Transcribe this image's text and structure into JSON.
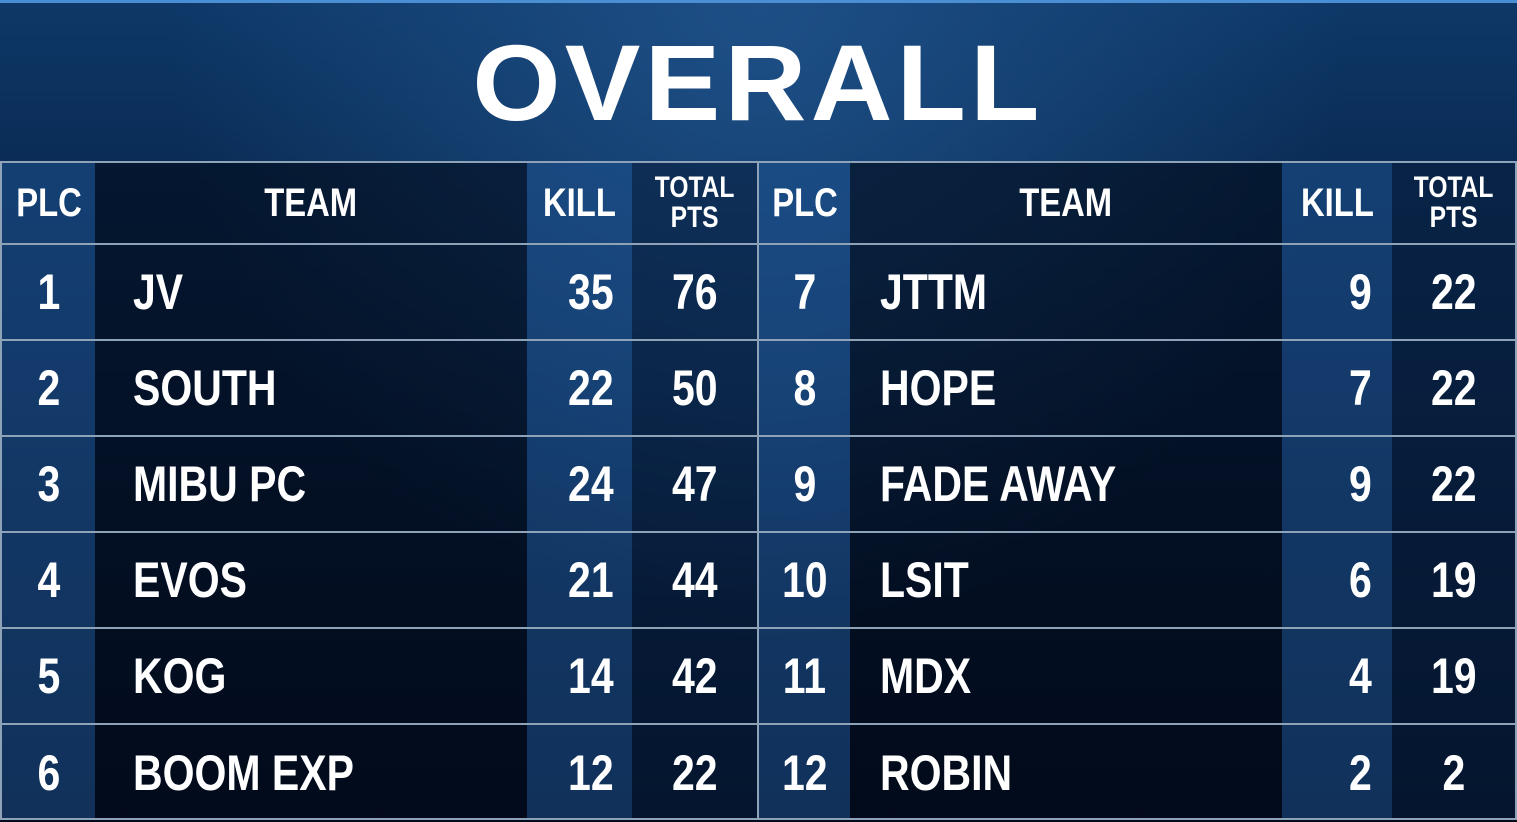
{
  "title": "OVERALL",
  "headers": {
    "plc": "PLC",
    "team": "TEAM",
    "kill": "KILL",
    "total_line1": "TOTAL",
    "total_line2": "PTS"
  },
  "left": [
    {
      "plc": "1",
      "team": "JV",
      "kill": "35",
      "total": "76"
    },
    {
      "plc": "2",
      "team": "SOUTH",
      "kill": "22",
      "total": "50"
    },
    {
      "plc": "3",
      "team": "MIBU PC",
      "kill": "24",
      "total": "47"
    },
    {
      "plc": "4",
      "team": "EVOS",
      "kill": "21",
      "total": "44"
    },
    {
      "plc": "5",
      "team": "KOG",
      "kill": "14",
      "total": "42"
    },
    {
      "plc": "6",
      "team": "BOOM EXP",
      "kill": "12",
      "total": "22"
    }
  ],
  "right": [
    {
      "plc": "7",
      "team": "JTTM",
      "kill": "9",
      "total": "22"
    },
    {
      "plc": "8",
      "team": "HOPE",
      "kill": "7",
      "total": "22"
    },
    {
      "plc": "9",
      "team": "FADE AWAY",
      "kill": "9",
      "total": "22"
    },
    {
      "plc": "10",
      "team": "LSIT",
      "kill": "6",
      "total": "19"
    },
    {
      "plc": "11",
      "team": "MDX",
      "kill": "4",
      "total": "19"
    },
    {
      "plc": "12",
      "team": "ROBIN",
      "kill": "2",
      "total": "2"
    }
  ],
  "colors": {
    "background": "#04132a",
    "grid": "#8ea2b8",
    "text": "#ffffff"
  }
}
